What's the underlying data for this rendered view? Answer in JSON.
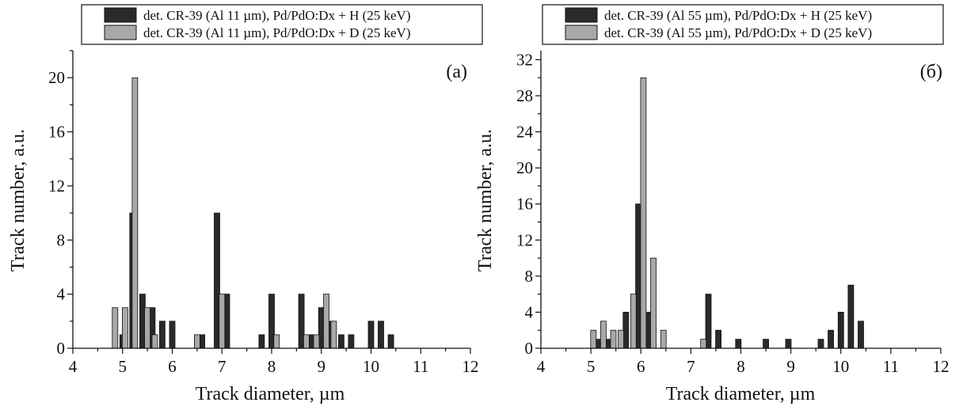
{
  "chart_data": [
    {
      "type": "bar",
      "panel_label": "(a)",
      "xlabel": "Track diameter, µm",
      "ylabel": "Track number, a.u.",
      "xlim": [
        4,
        12
      ],
      "ylim": [
        0,
        22
      ],
      "xticks": [
        4,
        5,
        6,
        7,
        8,
        9,
        10,
        11,
        12
      ],
      "yticks": [
        0,
        4,
        8,
        12,
        16,
        20
      ],
      "legend_position": "top",
      "series": [
        {
          "name": "det. CR-39 (Al 11 µm), Pd/PdO:Dx + H (25 keV)",
          "color": "#2a2a2a",
          "x": [
            5.0,
            5.2,
            5.4,
            5.6,
            5.8,
            6.0,
            6.6,
            6.9,
            7.1,
            7.8,
            8.0,
            8.6,
            8.8,
            9.0,
            9.2,
            9.4,
            9.6,
            10.0,
            10.2,
            10.4
          ],
          "values": [
            1,
            10,
            4,
            3,
            2,
            2,
            1,
            10,
            4,
            1,
            4,
            4,
            1,
            3,
            2,
            1,
            1,
            2,
            2,
            1
          ]
        },
        {
          "name": "det. CR-39 (Al 11 µm), Pd/PdO:Dx + D (25 keV)",
          "color": "#a8a8a8",
          "x": [
            4.85,
            5.05,
            5.25,
            5.5,
            5.65,
            6.5,
            7.0,
            8.1,
            8.7,
            8.9,
            9.1,
            9.25
          ],
          "values": [
            3,
            3,
            20,
            3,
            1,
            1,
            4,
            1,
            1,
            1,
            4,
            2
          ]
        }
      ]
    },
    {
      "type": "bar",
      "panel_label": "(б)",
      "xlabel": "Track diameter, µm",
      "ylabel": "Track number, a.u.",
      "xlim": [
        4,
        12
      ],
      "ylim": [
        0,
        33
      ],
      "xticks": [
        4,
        5,
        6,
        7,
        8,
        9,
        10,
        11,
        12
      ],
      "yticks": [
        0,
        4,
        8,
        12,
        16,
        20,
        24,
        28,
        32
      ],
      "legend_position": "top",
      "series": [
        {
          "name": "det. CR-39 (Al 55 µm), Pd/PdO:Dx + H (25 keV)",
          "color": "#2a2a2a",
          "x": [
            5.15,
            5.35,
            5.7,
            5.95,
            6.15,
            7.35,
            7.55,
            7.95,
            8.5,
            8.95,
            9.6,
            9.8,
            10.0,
            10.2,
            10.4
          ],
          "values": [
            1,
            1,
            4,
            16,
            4,
            6,
            2,
            1,
            1,
            1,
            1,
            2,
            4,
            7,
            3
          ]
        },
        {
          "name": "det. CR-39 (Al 55 µm), Pd/PdO:Dx + D (25 keV)",
          "color": "#a8a8a8",
          "x": [
            5.05,
            5.25,
            5.45,
            5.6,
            5.85,
            6.05,
            6.25,
            6.45,
            7.25
          ],
          "values": [
            2,
            3,
            2,
            2,
            6,
            30,
            10,
            2,
            1
          ]
        }
      ]
    }
  ]
}
